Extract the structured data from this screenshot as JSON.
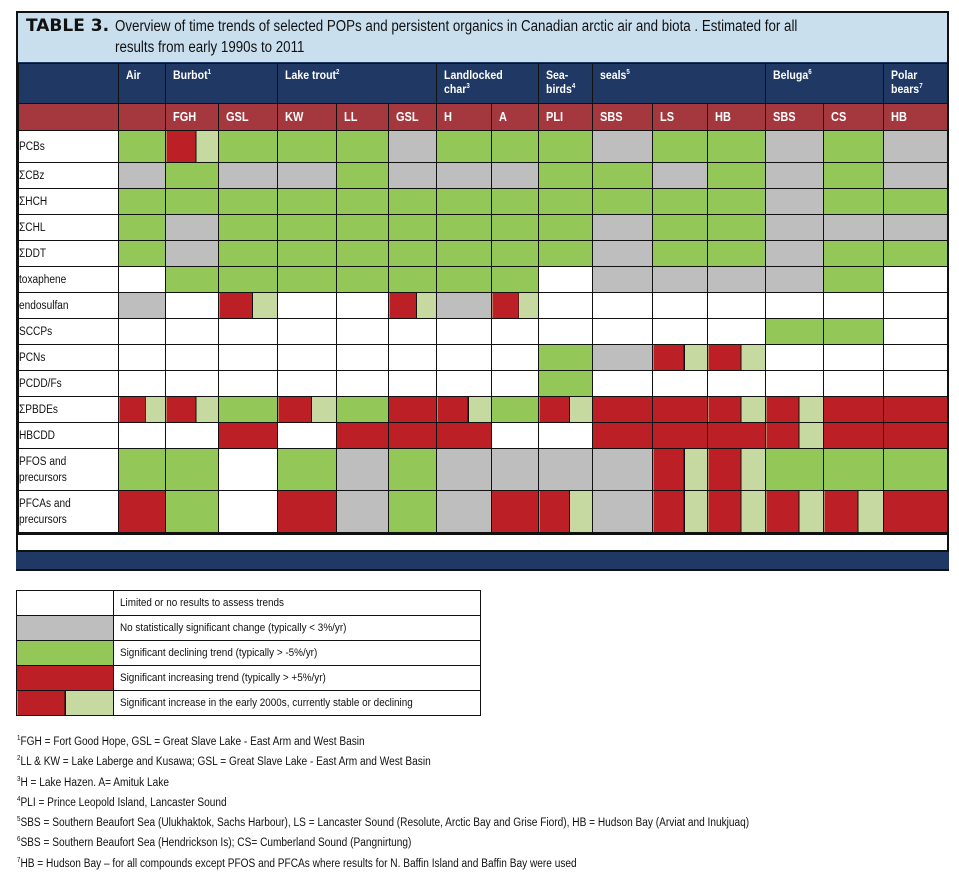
{
  "title": {
    "label": "TABLE 3.",
    "text": "Overview of time trends of selected POPs and persistent organics in Canadian arctic air and biota . Estimated for all results from early 1990s to 2011"
  },
  "colors": {
    "navy": "#1f3864",
    "header_red": "#a5373e",
    "title_bg": "#c9dfee",
    "no_data": "#ffffff",
    "no_change": "#bebebe",
    "declining": "#93c858",
    "increasing": "#bd1f26",
    "increase_then_stable": "#c5d9a0"
  },
  "groups": [
    {
      "name": "Air",
      "sup": "",
      "span": 1
    },
    {
      "name": "Burbot",
      "sup": "1",
      "span": 2
    },
    {
      "name": "Lake trout",
      "sup": "2",
      "span": 3
    },
    {
      "name": "Landlocked char",
      "sup": "3",
      "span": 2
    },
    {
      "name": "Sea-birds",
      "sup": "4",
      "span": 1
    },
    {
      "name": "seals",
      "sup": "5",
      "span": 3
    },
    {
      "name": "Beluga",
      "sup": "6",
      "span": 2
    },
    {
      "name": "Polar bears",
      "sup": "7",
      "span": 1
    }
  ],
  "sites": [
    "",
    "FGH",
    "GSL",
    "KW",
    "LL",
    "GSL",
    "H",
    "A",
    "PLI",
    "SBS",
    "LS",
    "HB",
    "SBS",
    "CS",
    "HB"
  ],
  "rows": [
    {
      "compound": "PCBs",
      "cells": [
        "N",
        "S",
        "N",
        "N",
        "N",
        "G",
        "N",
        "N",
        "N",
        "G",
        "N",
        "N",
        "G",
        "N",
        "G"
      ]
    },
    {
      "compound": "ΣCBz",
      "cells": [
        "G",
        "N",
        "G",
        "G",
        "N",
        "G",
        "G",
        "G",
        "N",
        "N",
        "G",
        "N",
        "G",
        "N",
        "G"
      ]
    },
    {
      "compound": "ΣHCH",
      "cells": [
        "N",
        "N",
        "N",
        "N",
        "N",
        "N",
        "N",
        "N",
        "N",
        "N",
        "N",
        "N",
        "G",
        "N",
        "N"
      ]
    },
    {
      "compound": "ΣCHL",
      "cells": [
        "N",
        "G",
        "N",
        "N",
        "N",
        "N",
        "N",
        "N",
        "N",
        "G",
        "N",
        "N",
        "G",
        "G",
        "G"
      ]
    },
    {
      "compound": "ΣDDT",
      "cells": [
        "N",
        "G",
        "N",
        "N",
        "N",
        "N",
        "N",
        "N",
        "N",
        "G",
        "N",
        "N",
        "G",
        "N",
        "N"
      ]
    },
    {
      "compound": "toxaphene",
      "cells": [
        "W",
        "N",
        "N",
        "N",
        "N",
        "N",
        "N",
        "N",
        "W",
        "G",
        "G",
        "G",
        "G",
        "N",
        "W"
      ]
    },
    {
      "compound": "endosulfan",
      "cells": [
        "G",
        "W",
        "S",
        "W",
        "W",
        "S",
        "G",
        "S",
        "W",
        "W",
        "W",
        "W",
        "W",
        "W",
        "W"
      ]
    },
    {
      "compound": "SCCPs",
      "cells": [
        "W",
        "W",
        "W",
        "W",
        "W",
        "W",
        "W",
        "W",
        "W",
        "W",
        "W",
        "W",
        "N",
        "N",
        "W"
      ]
    },
    {
      "compound": "PCNs",
      "cells": [
        "W",
        "W",
        "W",
        "W",
        "W",
        "W",
        "W",
        "W",
        "N",
        "G",
        "S",
        "S",
        "W",
        "W",
        "W"
      ]
    },
    {
      "compound": "PCDD/Fs",
      "cells": [
        "W",
        "W",
        "W",
        "W",
        "W",
        "W",
        "W",
        "W",
        "N",
        "W",
        "W",
        "W",
        "W",
        "W",
        "W"
      ]
    },
    {
      "compound": "ΣPBDEs",
      "cells": [
        "S",
        "S",
        "N",
        "S",
        "N",
        "R",
        "S",
        "N",
        "S",
        "R",
        "R",
        "S",
        "S",
        "R",
        "R"
      ]
    },
    {
      "compound": "HBCDD",
      "cells": [
        "W",
        "W",
        "R",
        "W",
        "R",
        "R",
        "R",
        "W",
        "W",
        "R",
        "R",
        "R",
        "S",
        "R",
        "R"
      ]
    },
    {
      "compound": "PFOS and precursors",
      "cells": [
        "N",
        "N",
        "W",
        "N",
        "G",
        "N",
        "G",
        "G",
        "G",
        "G",
        "S",
        "S",
        "N",
        "N",
        "N"
      ]
    },
    {
      "compound": "PFCAs and precursors",
      "cells": [
        "R",
        "N",
        "W",
        "R",
        "G",
        "N",
        "G",
        "R",
        "S",
        "G",
        "S",
        "S",
        "S",
        "S",
        "R"
      ]
    }
  ],
  "legend": [
    {
      "code": "W",
      "text": "Limited or no results to assess trends"
    },
    {
      "code": "G",
      "text": "No statistically significant change (typically < 3%/yr)"
    },
    {
      "code": "N",
      "text": "Significant declining trend (typically > -5%/yr)"
    },
    {
      "code": "R",
      "text": "Significant increasing trend (typically > +5%/yr)"
    },
    {
      "code": "S",
      "text": "Significant increase in the early 2000s, currently stable or declining"
    }
  ],
  "footnotes": [
    {
      "n": "1",
      "text": "FGH = Fort Good Hope, GSL = Great Slave Lake - East Arm and West Basin"
    },
    {
      "n": "2",
      "text": "LL & KW = Lake Laberge and Kusawa; GSL = Great Slave Lake - East Arm and West Basin"
    },
    {
      "n": "3",
      "text": "H = Lake Hazen. A= Amituk Lake"
    },
    {
      "n": "4",
      "text": "PLI = Prince Leopold Island, Lancaster Sound"
    },
    {
      "n": "5",
      "text": "SBS = Southern Beaufort Sea (Ulukhaktok, Sachs Harbour), LS = Lancaster Sound (Resolute, Arctic Bay and Grise Fiord), HB = Hudson Bay (Arviat and Inukjuaq)"
    },
    {
      "n": "6",
      "text": "SBS = Southern Beaufort Sea (Hendrickson Is); CS= Cumberland Sound (Pangnirtung)"
    },
    {
      "n": "7",
      "text": "HB = Hudson Bay – for all compounds except PFOS and PFCAs where results for N. Baffin Island and Baffin Bay were used"
    }
  ]
}
